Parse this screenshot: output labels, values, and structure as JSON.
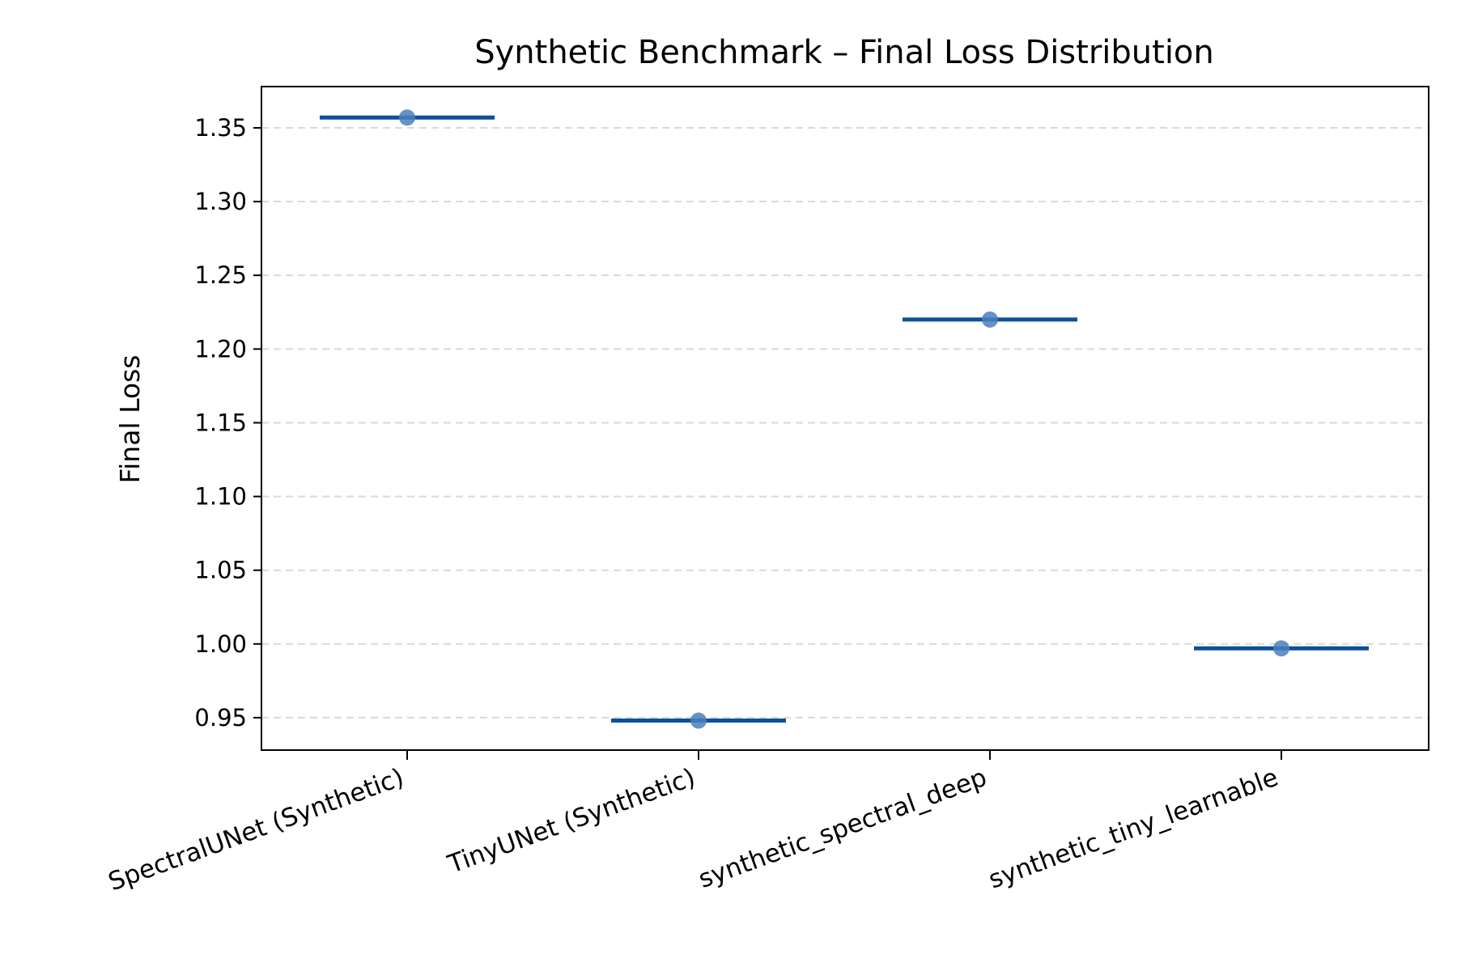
{
  "chart_data": {
    "type": "scatter",
    "title": "Synthetic Benchmark – Final Loss Distribution",
    "xlabel": "",
    "ylabel": "Final Loss",
    "categories": [
      "SpectralUNet (Synthetic)",
      "TinyUNet (Synthetic)",
      "synthetic_spectral_deep",
      "synthetic_tiny_learnable"
    ],
    "values": [
      1.357,
      0.948,
      1.22,
      0.997
    ],
    "medians": [
      1.357,
      0.948,
      1.22,
      0.997
    ],
    "ylim": [
      0.928,
      1.378
    ],
    "yticks": [
      0.95,
      1.0,
      1.05,
      1.1,
      1.15,
      1.2,
      1.25,
      1.3,
      1.35
    ],
    "ytick_labels": [
      "0.95",
      "1.00",
      "1.05",
      "1.10",
      "1.15",
      "1.20",
      "1.25",
      "1.30",
      "1.35"
    ],
    "grid": "y-dashed",
    "colors": {
      "point": "#4a7fbf",
      "median": "#0d4f9c",
      "grid": "#d9d9d9",
      "axis": "#000000"
    }
  }
}
